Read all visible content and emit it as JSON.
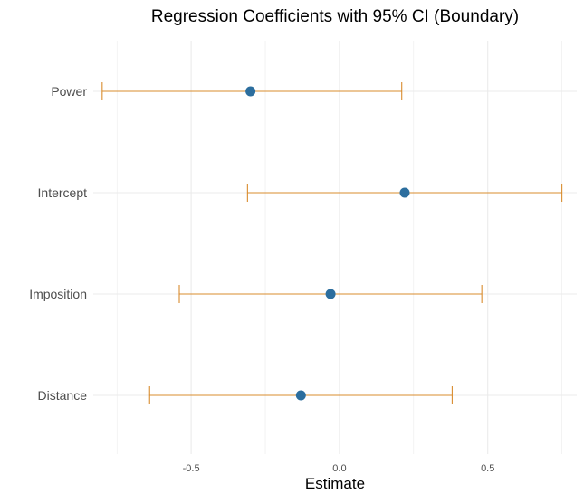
{
  "chart_data": {
    "type": "errorbar",
    "title": "Regression Coefficients with 95% CI (Boundary)",
    "xlabel": "Estimate",
    "ylabel": "",
    "xlim": [
      -0.83,
      0.8
    ],
    "x_ticks": [
      -0.5,
      0,
      0.5
    ],
    "x_tick_labels": [
      "-0.5",
      "0.0",
      "0.5"
    ],
    "grid": true,
    "legend": "none",
    "categories": [
      "Power",
      "Intercept",
      "Imposition",
      "Distance"
    ],
    "series": [
      {
        "estimates": [
          -0.3,
          0.22,
          -0.03,
          -0.13
        ],
        "ci_lower": [
          -0.8,
          -0.31,
          -0.54,
          -0.64
        ],
        "ci_upper": [
          0.21,
          0.75,
          0.48,
          0.38
        ]
      }
    ],
    "colors": {
      "point": "#2c6e9e",
      "errorbar": "#d98c2e",
      "grid": "#ebebeb",
      "text": "#4d4d4d",
      "title": "#000000"
    }
  }
}
